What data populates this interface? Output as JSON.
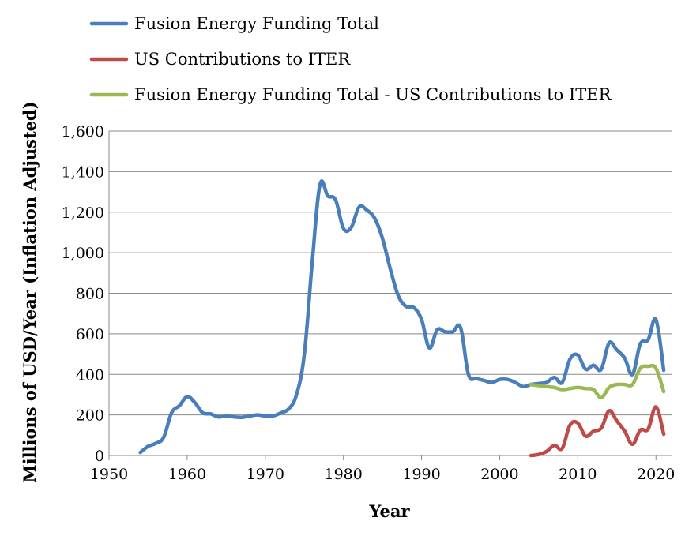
{
  "chart_data": {
    "type": "line",
    "title": "",
    "xlabel": "Year",
    "ylabel": "Millions of USD/Year (Inflation Adjusted)",
    "xlim": [
      1950,
      2022
    ],
    "ylim": [
      0,
      1600
    ],
    "x_ticks": [
      1950,
      1960,
      1970,
      1980,
      1990,
      2000,
      2010,
      2020
    ],
    "y_ticks": [
      0,
      200,
      400,
      600,
      800,
      1000,
      1200,
      1400,
      1600
    ],
    "y_tick_labels": [
      "0",
      "200",
      "400",
      "600",
      "800",
      "1,000",
      "1,200",
      "1,400",
      "1,600"
    ],
    "grid": "horizontal",
    "legend_position": "top",
    "series": [
      {
        "name": "Fusion Energy Funding Total",
        "color": "#4a7ebb",
        "x": [
          1954,
          1955,
          1956,
          1957,
          1958,
          1959,
          1960,
          1961,
          1962,
          1963,
          1964,
          1965,
          1966,
          1967,
          1968,
          1969,
          1970,
          1971,
          1972,
          1973,
          1974,
          1975,
          1976,
          1977,
          1978,
          1979,
          1980,
          1981,
          1982,
          1983,
          1984,
          1985,
          1986,
          1987,
          1988,
          1989,
          1990,
          1991,
          1992,
          1993,
          1994,
          1995,
          1996,
          1997,
          1998,
          1999,
          2000,
          2001,
          2002,
          2003,
          2004,
          2005,
          2006,
          2007,
          2008,
          2009,
          2010,
          2011,
          2012,
          2013,
          2014,
          2015,
          2016,
          2017,
          2018,
          2019,
          2020,
          2021
        ],
        "y": [
          15,
          45,
          60,
          90,
          210,
          245,
          290,
          260,
          210,
          205,
          190,
          195,
          190,
          188,
          195,
          200,
          195,
          195,
          210,
          230,
          300,
          500,
          950,
          1335,
          1280,
          1260,
          1120,
          1125,
          1225,
          1210,
          1170,
          1070,
          920,
          790,
          735,
          730,
          670,
          530,
          620,
          610,
          610,
          630,
          400,
          380,
          370,
          360,
          375,
          375,
          360,
          340,
          350,
          355,
          360,
          385,
          360,
          475,
          495,
          425,
          445,
          425,
          555,
          520,
          480,
          400,
          550,
          570,
          670,
          420
        ]
      },
      {
        "name": "US Contributions to ITER",
        "color": "#be4b48",
        "x": [
          2004,
          2005,
          2006,
          2007,
          2008,
          2009,
          2010,
          2011,
          2012,
          2013,
          2014,
          2015,
          2016,
          2017,
          2018,
          2019,
          2020,
          2021
        ],
        "y": [
          0,
          5,
          20,
          50,
          35,
          150,
          160,
          95,
          120,
          135,
          220,
          170,
          120,
          55,
          125,
          130,
          240,
          105
        ]
      },
      {
        "name": "Fusion Energy Funding Total - US Contributions to ITER",
        "color": "#98b954",
        "x": [
          2004,
          2005,
          2006,
          2007,
          2008,
          2009,
          2010,
          2011,
          2012,
          2013,
          2014,
          2015,
          2016,
          2017,
          2018,
          2019,
          2020,
          2021
        ],
        "y": [
          350,
          345,
          340,
          335,
          325,
          330,
          335,
          330,
          325,
          285,
          335,
          350,
          350,
          350,
          430,
          440,
          430,
          315
        ]
      }
    ]
  }
}
